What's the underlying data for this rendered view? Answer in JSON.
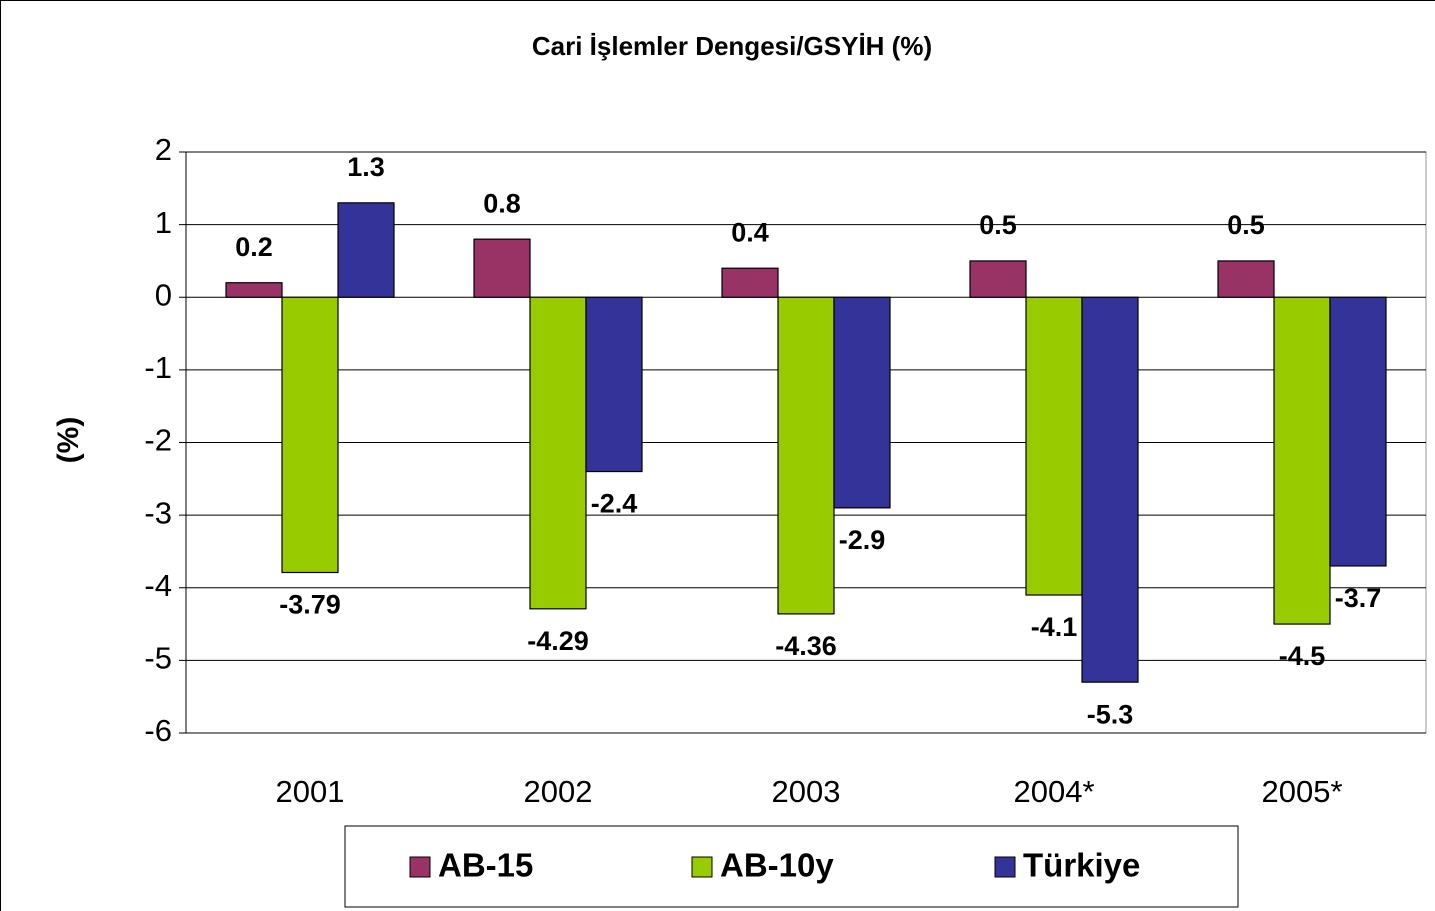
{
  "chart_data": {
    "type": "bar",
    "title": "Cari İşlemler Dengesi/GSYİH (%)",
    "y_label": "(%)",
    "categories": [
      "2001",
      "2002",
      "2003",
      "2004*",
      "2005*"
    ],
    "series": [
      {
        "name": "AB-15",
        "color": "#993366",
        "values": [
          0.2,
          0.8,
          0.4,
          0.5,
          0.5
        ]
      },
      {
        "name": "AB-10y",
        "color": "#99cc00",
        "values": [
          -3.79,
          -4.29,
          -4.36,
          -4.1,
          -4.5
        ]
      },
      {
        "name": "Türkiye",
        "color": "#333399",
        "values": [
          1.3,
          -2.4,
          -2.9,
          -5.3,
          -3.7
        ]
      }
    ],
    "ylim": [
      -6,
      2
    ],
    "yticks": [
      -6,
      -5,
      -4,
      -3,
      -2,
      -1,
      0,
      1,
      2
    ],
    "grid": true,
    "legend": "bottom"
  }
}
